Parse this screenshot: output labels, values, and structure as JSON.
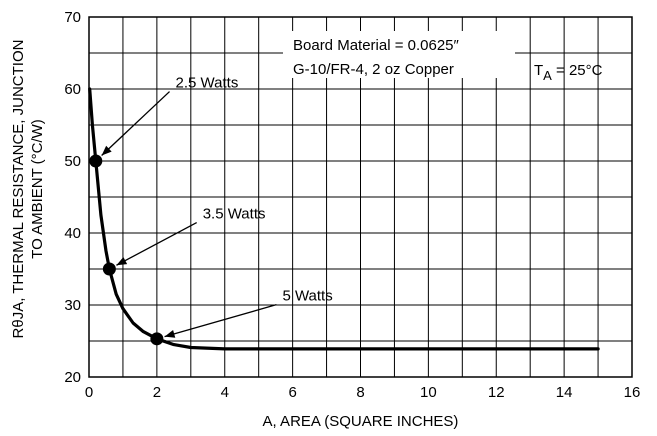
{
  "chart_data": {
    "type": "line",
    "x_label": "A, AREA (SQUARE INCHES)",
    "y_label_line1": "RθJA, THERMAL RESISTANCE, JUNCTION",
    "y_label_line2": "TO AMBIENT (°C/W)",
    "xlim": [
      0,
      16
    ],
    "ylim": [
      20,
      70
    ],
    "x_ticks": [
      0,
      2,
      4,
      6,
      8,
      10,
      12,
      14,
      16
    ],
    "y_ticks": [
      20,
      30,
      40,
      50,
      60,
      70
    ],
    "x_tick_labels": [
      "0",
      "2",
      "4",
      "6",
      "8",
      "10",
      "12",
      "14",
      "16"
    ],
    "y_tick_labels": [
      "20",
      "30",
      "40",
      "50",
      "60",
      "70"
    ],
    "grid": true,
    "series": [
      {
        "x": [
          0.02,
          0.1,
          0.2,
          0.35,
          0.5,
          0.6,
          0.8,
          1.0,
          1.3,
          1.6,
          2.0,
          2.5,
          3.0,
          4.0,
          6.0,
          8.0,
          10.0,
          12.0,
          14.0,
          15.0
        ],
        "y": [
          60.0,
          55.0,
          50.0,
          42.5,
          37.5,
          35.0,
          31.5,
          29.5,
          27.5,
          26.3,
          25.3,
          24.5,
          24.1,
          23.9,
          23.9,
          23.9,
          23.9,
          23.9,
          23.9,
          23.9
        ]
      }
    ],
    "points": [
      {
        "x": 0.2,
        "y": 50,
        "label": "2.5 Watts",
        "label_x": 2.55,
        "label_y": 60.2
      },
      {
        "x": 0.6,
        "y": 35,
        "label": "3.5 Watts",
        "label_x": 3.35,
        "label_y": 42.0
      },
      {
        "x": 2.0,
        "y": 25.3,
        "label": "5 Watts",
        "label_x": 5.7,
        "label_y": 30.6
      }
    ],
    "text_box": {
      "line1": "Board Material = 0.0625″",
      "line2": "G-10/FR-4, 2 oz Copper"
    },
    "ambient_label": {
      "prefix": "T",
      "subscript": "A",
      "suffix": " = 25°C"
    }
  }
}
